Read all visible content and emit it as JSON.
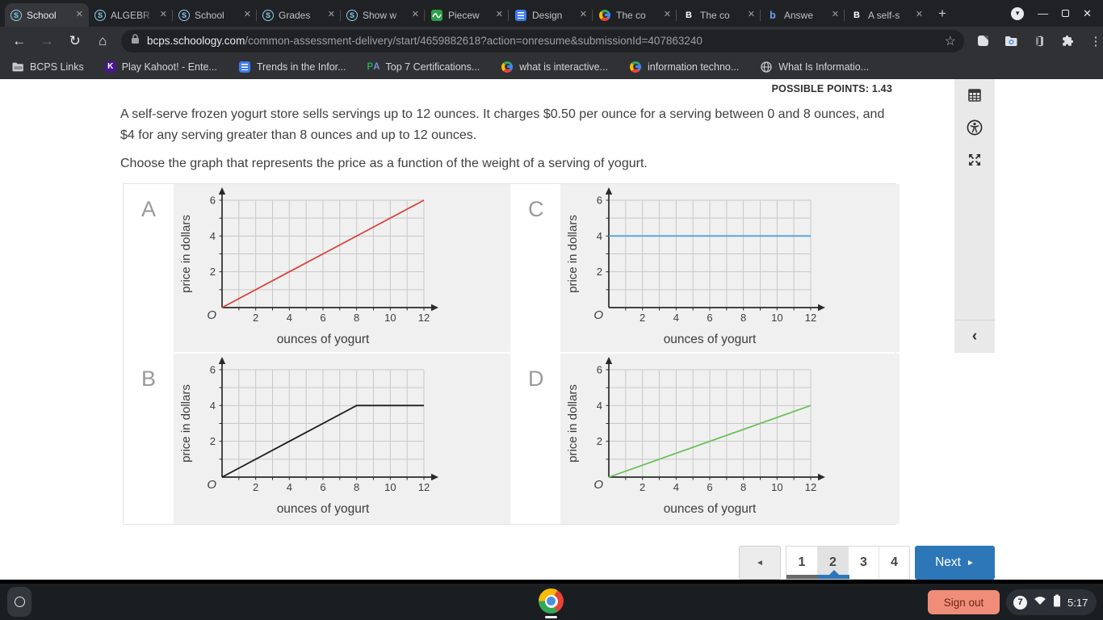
{
  "browser": {
    "tabs": [
      {
        "title": "School",
        "icon": "schoology",
        "active": true
      },
      {
        "title": "ALGEBR",
        "icon": "schoology",
        "active": false
      },
      {
        "title": "School",
        "icon": "schoology",
        "active": false
      },
      {
        "title": "Grades",
        "icon": "schoology",
        "active": false
      },
      {
        "title": "Show w",
        "icon": "schoology",
        "active": false
      },
      {
        "title": "Piecew",
        "icon": "desmos",
        "active": false
      },
      {
        "title": "Design",
        "icon": "docs",
        "active": false
      },
      {
        "title": "The co",
        "icon": "google",
        "active": false
      },
      {
        "title": "The co",
        "icon": "brainly",
        "active": false
      },
      {
        "title": "Answe",
        "icon": "bartleby",
        "active": false
      },
      {
        "title": "A self-s",
        "icon": "brainly",
        "active": false
      }
    ],
    "new_tab_label": "+",
    "url": {
      "host": "bcps.schoology.com",
      "path": "/common-assessment-delivery/start/4659882618?action=onresume&submissionId=407863240"
    },
    "bookmarks": [
      {
        "label": "BCPS Links",
        "icon": "folder"
      },
      {
        "label": "Play Kahoot! - Ente...",
        "icon": "kahoot"
      },
      {
        "label": "Trends in the Infor...",
        "icon": "docs"
      },
      {
        "label": "Top 7 Certifications...",
        "icon": "pa"
      },
      {
        "label": "what is interactive...",
        "icon": "google"
      },
      {
        "label": "information techno...",
        "icon": "google"
      },
      {
        "label": "What Is Informatio...",
        "icon": "globe"
      }
    ]
  },
  "assessment": {
    "possible_points": "POSSIBLE POINTS: 1.43",
    "question_text": "A self-serve frozen yogurt store sells servings up to 12 ounces. It charges $0.50 per ounce for a serving between 0 and 8 ounces, and $4 for any serving greater than 8 ounces and up to 12 ounces.",
    "question_prompt": "Choose the graph that represents the price as a function of the weight of a serving of yogurt."
  },
  "chart_data": [
    {
      "option": "A",
      "type": "line",
      "line_color": "#d8453e",
      "points": [
        [
          0,
          0
        ],
        [
          12,
          6
        ]
      ],
      "xlabel": "ounces of yogurt",
      "ylabel": "price in dollars",
      "xlim": [
        0,
        12
      ],
      "ylim": [
        0,
        6
      ],
      "xticks": [
        2,
        4,
        6,
        8,
        10,
        12
      ],
      "yticks": [
        2,
        4,
        6
      ],
      "grid": true,
      "origin_label": "O"
    },
    {
      "option": "B",
      "type": "line",
      "line_color": "#1d1d1b",
      "points": [
        [
          0,
          0
        ],
        [
          8,
          4
        ],
        [
          12,
          4
        ]
      ],
      "xlabel": "ounces of yogurt",
      "ylabel": "price in dollars",
      "xlim": [
        0,
        12
      ],
      "ylim": [
        0,
        6
      ],
      "xticks": [
        2,
        4,
        6,
        8,
        10,
        12
      ],
      "yticks": [
        2,
        4,
        6
      ],
      "grid": true,
      "origin_label": "O"
    },
    {
      "option": "C",
      "type": "line",
      "line_color": "#55a1d6",
      "points": [
        [
          0,
          4
        ],
        [
          12,
          4
        ]
      ],
      "xlabel": "ounces of yogurt",
      "ylabel": "price in dollars",
      "xlim": [
        0,
        12
      ],
      "ylim": [
        0,
        6
      ],
      "xticks": [
        2,
        4,
        6,
        8,
        10,
        12
      ],
      "yticks": [
        2,
        4,
        6
      ],
      "grid": true,
      "origin_label": "O"
    },
    {
      "option": "D",
      "type": "line",
      "line_color": "#6ec15c",
      "points": [
        [
          0,
          0
        ],
        [
          12,
          4
        ]
      ],
      "xlabel": "ounces of yogurt",
      "ylabel": "price in dollars",
      "xlim": [
        0,
        12
      ],
      "ylim": [
        0,
        6
      ],
      "xticks": [
        2,
        4,
        6,
        8,
        10,
        12
      ],
      "yticks": [
        2,
        4,
        6
      ],
      "grid": true,
      "origin_label": "O"
    }
  ],
  "options_display_order": [
    0,
    2,
    1,
    3
  ],
  "pagination": {
    "pages": [
      "1",
      "2",
      "3",
      "4"
    ],
    "current_page": "2",
    "completed_pages": [
      "1"
    ],
    "next_label": "Next"
  },
  "shelf": {
    "sign_out_label": "Sign out",
    "notification_count": "7",
    "time": "5:17"
  }
}
